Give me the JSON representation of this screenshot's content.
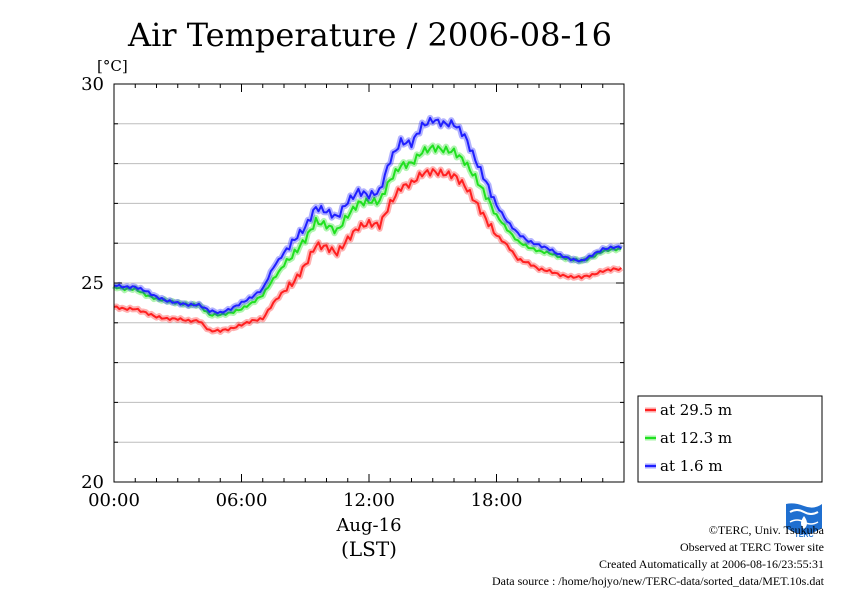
{
  "chart_data": {
    "type": "line",
    "title": "Air Temperature / 2006-08-16",
    "ylabel": "[°C]",
    "xlabel": "Aug-16",
    "xlabel2": "(LST)",
    "ylim": [
      20,
      30
    ],
    "xlim_hours": [
      0,
      24
    ],
    "yticks": [
      "20",
      "25",
      "30"
    ],
    "xticks": [
      {
        "hour": 0,
        "label": "00:00"
      },
      {
        "hour": 6,
        "label": "06:00"
      },
      {
        "hour": 12,
        "label": "12:00"
      },
      {
        "hour": 18,
        "label": "18:00"
      }
    ],
    "grid": true,
    "legend_position": "right-bottom, outside plot",
    "x": [
      0,
      0.5,
      1,
      1.5,
      2,
      2.5,
      3,
      3.5,
      4,
      4.5,
      5,
      5.5,
      6,
      6.5,
      7,
      7.5,
      8,
      8.5,
      9,
      9.5,
      10,
      10.5,
      11,
      11.5,
      12,
      12.5,
      13,
      13.5,
      14,
      14.5,
      15,
      15.5,
      16,
      16.5,
      17,
      17.5,
      18,
      18.5,
      19,
      19.5,
      20,
      20.5,
      21,
      21.5,
      22,
      22.5,
      23,
      23.5
    ],
    "series": [
      {
        "name": "at 29.5 m",
        "color": "#ff2020",
        "values": [
          24.4,
          24.35,
          24.35,
          24.25,
          24.15,
          24.1,
          24.1,
          24.05,
          24.05,
          23.8,
          23.8,
          23.85,
          23.95,
          24.05,
          24.1,
          24.5,
          24.8,
          25.05,
          25.45,
          25.95,
          25.9,
          25.75,
          26.1,
          26.4,
          26.5,
          26.45,
          27.0,
          27.4,
          27.5,
          27.75,
          27.8,
          27.75,
          27.7,
          27.45,
          27.05,
          26.6,
          26.2,
          25.95,
          25.6,
          25.5,
          25.35,
          25.3,
          25.2,
          25.15,
          25.15,
          25.2,
          25.3,
          25.35
        ]
      },
      {
        "name": "at 12.3 m",
        "color": "#20e020",
        "values": [
          24.9,
          24.85,
          24.85,
          24.7,
          24.6,
          24.55,
          24.5,
          24.45,
          24.45,
          24.2,
          24.2,
          24.25,
          24.35,
          24.5,
          24.7,
          25.1,
          25.45,
          25.75,
          26.1,
          26.55,
          26.45,
          26.3,
          26.7,
          27.0,
          27.05,
          27.05,
          27.6,
          27.95,
          28.0,
          28.3,
          28.4,
          28.35,
          28.3,
          28.05,
          27.65,
          27.2,
          26.7,
          26.35,
          26.05,
          25.9,
          25.8,
          25.75,
          25.65,
          25.6,
          25.55,
          25.65,
          25.8,
          25.85
        ]
      },
      {
        "name": "at 1.6 m",
        "color": "#2020ff",
        "values": [
          24.95,
          24.9,
          24.9,
          24.8,
          24.65,
          24.55,
          24.5,
          24.45,
          24.45,
          24.3,
          24.25,
          24.35,
          24.5,
          24.65,
          24.85,
          25.4,
          25.75,
          26.1,
          26.4,
          26.9,
          26.8,
          26.65,
          27.05,
          27.3,
          27.2,
          27.3,
          28.1,
          28.55,
          28.5,
          28.95,
          29.1,
          29.0,
          29.0,
          28.7,
          28.1,
          27.55,
          26.95,
          26.55,
          26.25,
          26.05,
          25.95,
          25.85,
          25.7,
          25.6,
          25.55,
          25.7,
          25.85,
          25.9
        ]
      }
    ]
  },
  "credits": {
    "line1": "©TERC, Univ. Tsukuba",
    "line2": "Observed at TERC Tower site",
    "line3": "Created Automatically at 2006-08-16/23:55:31",
    "line4": "Data source : /home/hojyo/new/TERC-data/sorted_data/MET.10s.dat"
  },
  "logo": {
    "text": "TERC",
    "icon": "terc-logo-icon",
    "color": "#1f6fd0"
  }
}
